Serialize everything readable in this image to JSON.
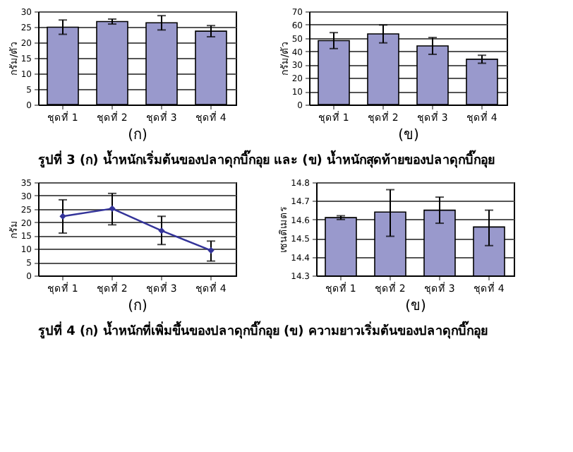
{
  "chart_data": [
    {
      "type": "bar",
      "xlabel": "(ก)",
      "ylabel": "กรัม/ตัว",
      "categories": [
        "ชุดที่ 1",
        "ชุดที่ 2",
        "ชุดที่ 3",
        "ชุดที่ 4"
      ],
      "values": [
        24.9,
        26.7,
        26.3,
        23.6
      ],
      "errors": [
        2.3,
        0.8,
        2.3,
        1.8
      ],
      "color": "#9999cc",
      "ylim": [
        0,
        30
      ],
      "yticks": [
        0,
        5,
        10,
        15,
        20,
        25,
        30
      ],
      "grid": "y",
      "annotations": [
        "รูปที่ 3 (ก) น้ำหนักเริ่มต้นของปลาดุกบิ๊กอุย และ (ข) น้ำหนักสุดท้ายของปลาดุกบิ๊กอุย"
      ]
    },
    {
      "type": "bar",
      "xlabel": "(ข)",
      "ylabel": "กรัม/ตัว",
      "categories": [
        "ชุดที่ 1",
        "ชุดที่ 2",
        "ชุดที่ 3",
        "ชุดที่ 4"
      ],
      "values": [
        48,
        53,
        44,
        34
      ],
      "errors": [
        6,
        6.7,
        6.3,
        3
      ],
      "color": "#9999cc",
      "ylim": [
        0,
        70
      ],
      "yticks": [
        0,
        10,
        20,
        30,
        40,
        50,
        60,
        70
      ],
      "grid": "y"
    },
    {
      "type": "line",
      "xlabel": "(ก)",
      "ylabel": "กรัม",
      "categories": [
        "ชุดที่ 1",
        "ชุดที่ 2",
        "ชุดที่ 3",
        "ชุดที่ 4"
      ],
      "values": [
        22.2,
        25.1,
        16.8,
        9.4
      ],
      "errors": [
        [
          15.9,
          28.4
        ],
        [
          19,
          30.8
        ],
        [
          11.6,
          22.2
        ],
        [
          5.4,
          12.9
        ]
      ],
      "color": "#333399",
      "marker": "diamond",
      "ylim": [
        0,
        35
      ],
      "yticks": [
        0,
        5,
        10,
        15,
        20,
        25,
        30,
        35
      ],
      "grid": "y",
      "annotations": [
        "รูปที่ 4 (ก) น้ำหนักที่เพิ่มขึ้นของปลาดุกบิ๊กอุย (ข) ความยาวเริ่มต้นของปลาดุกบิ๊กอุย"
      ]
    },
    {
      "type": "bar",
      "xlabel": "(ข)",
      "ylabel": "เซนติเมตร",
      "categories": [
        "ชุดที่ 1",
        "ชุดที่ 2",
        "ชุดที่ 3",
        "ชุดที่ 4"
      ],
      "values": [
        14.61,
        14.64,
        14.65,
        14.56
      ],
      "errors": [
        [
          14.6,
          14.62
        ],
        [
          14.51,
          14.76
        ],
        [
          14.58,
          14.72
        ],
        [
          14.46,
          14.65
        ]
      ],
      "color": "#9999cc",
      "ylim": [
        14.3,
        14.8
      ],
      "yticks": [
        14.3,
        14.4,
        14.5,
        14.6,
        14.7,
        14.8
      ],
      "grid": "y"
    }
  ]
}
